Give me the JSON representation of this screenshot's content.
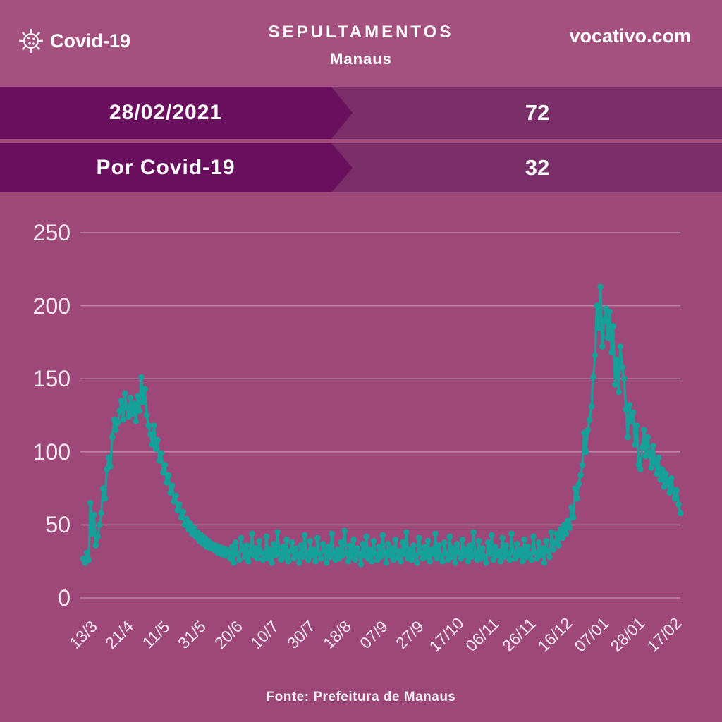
{
  "header": {
    "logo_label": "Covid-19",
    "title_line1": "SEPULTAMENTOS",
    "title_line2": "Manaus",
    "site": "vocativo.com"
  },
  "banners": [
    {
      "label": "28/02/2021",
      "value": "72"
    },
    {
      "label": "Por Covid-19",
      "value": "32"
    }
  ],
  "footer": {
    "text": "Fonte:  Prefeitura de Manaus"
  },
  "colors": {
    "background": "#9D4878",
    "header_background": "#A45180",
    "banner_background": "#7B2F68",
    "banner_arrow": "#690F5E",
    "line": "#15A199",
    "gridline": "rgba(255,255,255,0.32)",
    "text": "#FFFFFF"
  },
  "chart_data": {
    "type": "line",
    "title": "Sepultamentos diários em Manaus",
    "xlabel": "",
    "ylabel": "",
    "ylim": [
      0,
      250
    ],
    "yticks": [
      0,
      50,
      100,
      150,
      200,
      250
    ],
    "grid": true,
    "legend": "none",
    "marker": "circle",
    "xtick_every": 20,
    "xtick_labels": [
      "13/3",
      "21/4",
      "11/5",
      "31/5",
      "20/6",
      "10/7",
      "30/7",
      "18/8",
      "07/9",
      "27/9",
      "17/10",
      "06/11",
      "26/11",
      "16/12",
      "07/01",
      "28/01",
      "17/02"
    ],
    "values": [
      27,
      24,
      31,
      26,
      65,
      44,
      57,
      36,
      42,
      50,
      58,
      75,
      68,
      88,
      96,
      90,
      110,
      122,
      115,
      120,
      128,
      135,
      122,
      140,
      130,
      124,
      137,
      126,
      133,
      121,
      138,
      128,
      151,
      134,
      143,
      125,
      118,
      112,
      105,
      118,
      102,
      108,
      94,
      99,
      86,
      91,
      79,
      84,
      72,
      77,
      66,
      70,
      60,
      64,
      55,
      59,
      50,
      54,
      47,
      51,
      44,
      48,
      42,
      45,
      39,
      43,
      37,
      41,
      35,
      39,
      34,
      37,
      33,
      36,
      31,
      35,
      30,
      34,
      29,
      33,
      31,
      27,
      35,
      24,
      38,
      30,
      26,
      41,
      33,
      28,
      36,
      25,
      32,
      44,
      29,
      34,
      27,
      39,
      31,
      26,
      30,
      42,
      27,
      33,
      24,
      37,
      29,
      45,
      31,
      26,
      35,
      28,
      40,
      25,
      32,
      38,
      27,
      34,
      30,
      24,
      36,
      28,
      43,
      31,
      26,
      39,
      29,
      33,
      25,
      41,
      30,
      27,
      37,
      32,
      24,
      35,
      28,
      44,
      30,
      26,
      33,
      27,
      38,
      29,
      46,
      31,
      25,
      36,
      28,
      40,
      26,
      34,
      30,
      23,
      37,
      29,
      42,
      27,
      33,
      25,
      39,
      30,
      26,
      35,
      28,
      43,
      31,
      24,
      37,
      29,
      34,
      26,
      40,
      28,
      32,
      25,
      38,
      30,
      45,
      27,
      33,
      26,
      36,
      29,
      24,
      41,
      31,
      27,
      35,
      28,
      39,
      25,
      33,
      30,
      44,
      27,
      36,
      29,
      25,
      38,
      30,
      26,
      42,
      28,
      34,
      24,
      37,
      31,
      27,
      40,
      29,
      33,
      25,
      36,
      28,
      45,
      30,
      26,
      39,
      27,
      34,
      28,
      24,
      38,
      30,
      43,
      26,
      35,
      29,
      32,
      25,
      41,
      28,
      36,
      30,
      26,
      44,
      31,
      27,
      37,
      29,
      33,
      25,
      40,
      28,
      35,
      30,
      26,
      42,
      31,
      27,
      38,
      29,
      34,
      24,
      39,
      32,
      28,
      45,
      33,
      38,
      44,
      36,
      47,
      41,
      50,
      44,
      53,
      48,
      62,
      55,
      75,
      68,
      78,
      84,
      91,
      113,
      100,
      115,
      122,
      131,
      151,
      166,
      200,
      185,
      213,
      172,
      190,
      198,
      178,
      196,
      168,
      186,
      146,
      163,
      141,
      172,
      158,
      150,
      129,
      110,
      132,
      121,
      127,
      105,
      118,
      91,
      88,
      103,
      115,
      97,
      110,
      100,
      89,
      104,
      93,
      85,
      96,
      81,
      88,
      76,
      85,
      79,
      72,
      82,
      74,
      68,
      74,
      64,
      58
    ]
  }
}
